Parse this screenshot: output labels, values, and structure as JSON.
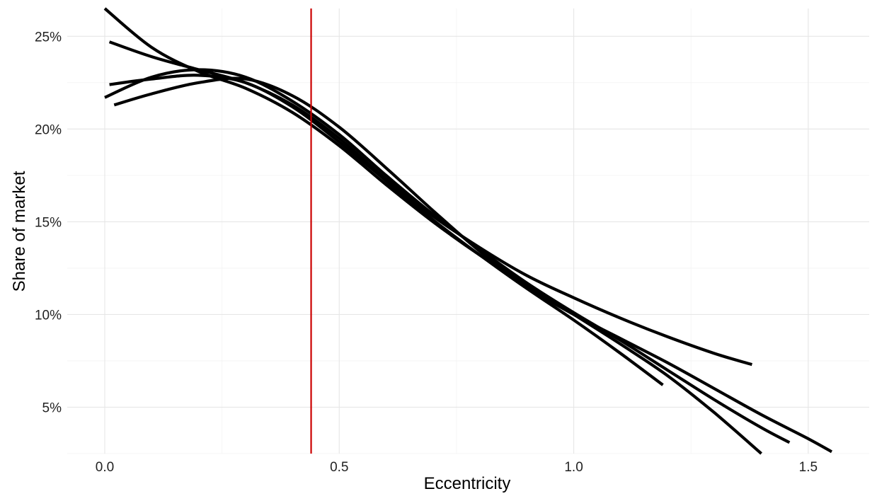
{
  "chart_data": {
    "type": "line",
    "title": "",
    "xlabel": "Eccentricity",
    "ylabel": "Share of market",
    "xlim": [
      -0.08,
      1.63
    ],
    "ylim": [
      2.5,
      26.5
    ],
    "x_ticks": [
      0.0,
      0.5,
      1.0,
      1.5
    ],
    "x_tick_labels": [
      "0.0",
      "0.5",
      "1.0",
      "1.5"
    ],
    "y_ticks": [
      5,
      10,
      15,
      20,
      25
    ],
    "y_tick_labels": [
      "5%",
      "10%",
      "15%",
      "20%",
      "25%"
    ],
    "grid": true,
    "legend": "none",
    "line_color": "#000000",
    "reference_line": {
      "x": 0.44,
      "color": "#cc0000"
    },
    "series": [
      {
        "x": [
          0.0,
          0.1,
          0.2,
          0.3,
          0.4,
          0.5,
          0.6,
          0.7,
          0.8,
          0.9,
          1.0,
          1.1,
          1.2,
          1.3,
          1.4
        ],
        "y": [
          26.5,
          24.4,
          23.1,
          22.2,
          20.9,
          19.1,
          17.0,
          15.0,
          13.2,
          11.6,
          10.0,
          8.4,
          6.7,
          4.7,
          2.5
        ]
      },
      {
        "x": [
          0.01,
          0.1,
          0.2,
          0.3,
          0.4,
          0.5,
          0.6,
          0.7,
          0.8,
          0.9,
          1.0,
          1.1,
          1.2,
          1.3,
          1.38
        ],
        "y": [
          24.7,
          23.9,
          23.2,
          22.5,
          21.3,
          19.5,
          17.3,
          15.3,
          13.6,
          12.1,
          10.9,
          9.8,
          8.8,
          7.9,
          7.3
        ]
      },
      {
        "x": [
          0.01,
          0.1,
          0.2,
          0.3,
          0.4,
          0.5,
          0.6,
          0.7,
          0.8,
          0.9,
          1.0,
          1.1,
          1.19
        ],
        "y": [
          22.4,
          22.7,
          22.9,
          22.5,
          21.2,
          19.3,
          17.2,
          15.1,
          13.2,
          11.4,
          9.7,
          7.9,
          6.2
        ]
      },
      {
        "x": [
          0.0,
          0.1,
          0.2,
          0.3,
          0.4,
          0.5,
          0.6,
          0.7,
          0.8,
          0.9,
          1.0,
          1.1,
          1.2,
          1.3,
          1.4,
          1.46
        ],
        "y": [
          21.7,
          22.8,
          23.2,
          22.8,
          21.5,
          19.7,
          17.5,
          15.4,
          13.5,
          11.7,
          10.1,
          8.6,
          7.0,
          5.4,
          3.9,
          3.1
        ]
      },
      {
        "x": [
          0.02,
          0.1,
          0.2,
          0.3,
          0.4,
          0.5,
          0.6,
          0.7,
          0.8,
          0.9,
          1.0,
          1.1,
          1.2,
          1.3,
          1.4,
          1.5,
          1.55
        ],
        "y": [
          21.3,
          21.9,
          22.5,
          22.7,
          21.8,
          20.1,
          17.9,
          15.6,
          13.4,
          11.5,
          10.0,
          8.7,
          7.4,
          6.0,
          4.6,
          3.3,
          2.6
        ]
      }
    ]
  }
}
